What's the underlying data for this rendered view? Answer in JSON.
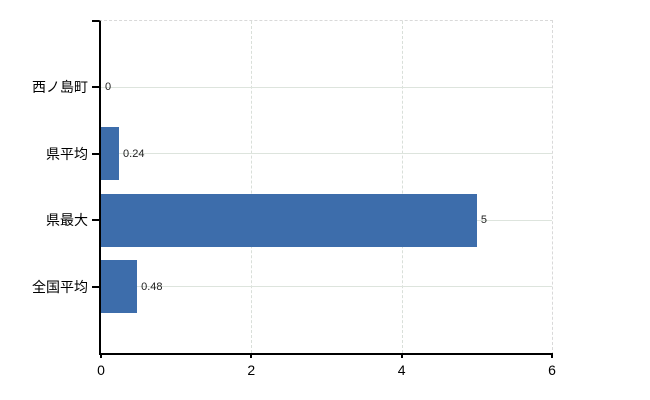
{
  "chart_data": {
    "type": "bar",
    "orientation": "horizontal",
    "title": "",
    "xlabel": "",
    "ylabel": "",
    "categories": [
      "西ノ島町",
      "県平均",
      "県最大",
      "全国平均"
    ],
    "values": [
      0,
      0.24,
      5,
      0.48
    ],
    "value_labels": [
      "0",
      "0.24",
      "5",
      "0.48"
    ],
    "x_ticks": [
      0,
      2,
      4,
      6
    ],
    "x_tick_labels": [
      "0",
      "2",
      "4",
      "6"
    ],
    "xlim": [
      0,
      6
    ],
    "grid": true,
    "legend": false,
    "colors": {
      "bar": "#3d6dab",
      "grid_solid": "#dde4dd",
      "grid_dashed": "#d9d9d9",
      "axis": "#000000",
      "value_label": "#222222",
      "tick_label": "#000000",
      "background": "#ffffff"
    }
  }
}
